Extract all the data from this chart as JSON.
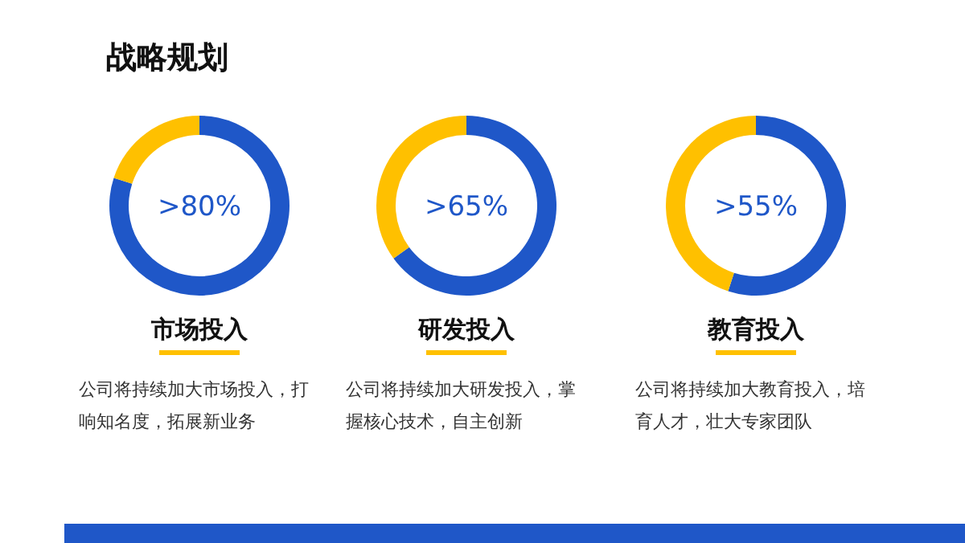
{
  "chart_data": [
    {
      "type": "other",
      "title": "战略规划"
    },
    {
      "type": "donut",
      "title": "市场投入",
      "categories": [
        null,
        null
      ],
      "values": [
        80,
        20
      ],
      "colors": [
        "#1f57c8",
        "#ffc000"
      ],
      "annotations": [
        ">80%",
        "公司将持续加大市场投入，打响知名度，拓展新业务"
      ]
    },
    {
      "type": "donut",
      "title": "研发投入",
      "categories": [
        null,
        null
      ],
      "values": [
        65,
        35
      ],
      "colors": [
        "#1f57c8",
        "#ffc000"
      ],
      "annotations": [
        ">65%",
        "公司将持续加大研发投入，掌握核心技术，自主创新"
      ]
    },
    {
      "type": "donut",
      "title": "教育投入",
      "categories": [
        null,
        null
      ],
      "values": [
        55,
        45
      ],
      "colors": [
        "#1f57c8",
        "#ffc000"
      ],
      "annotations": [
        ">55%",
        "公司将持续加大教育投入，培育人才，壮大专家团队"
      ]
    }
  ]
}
